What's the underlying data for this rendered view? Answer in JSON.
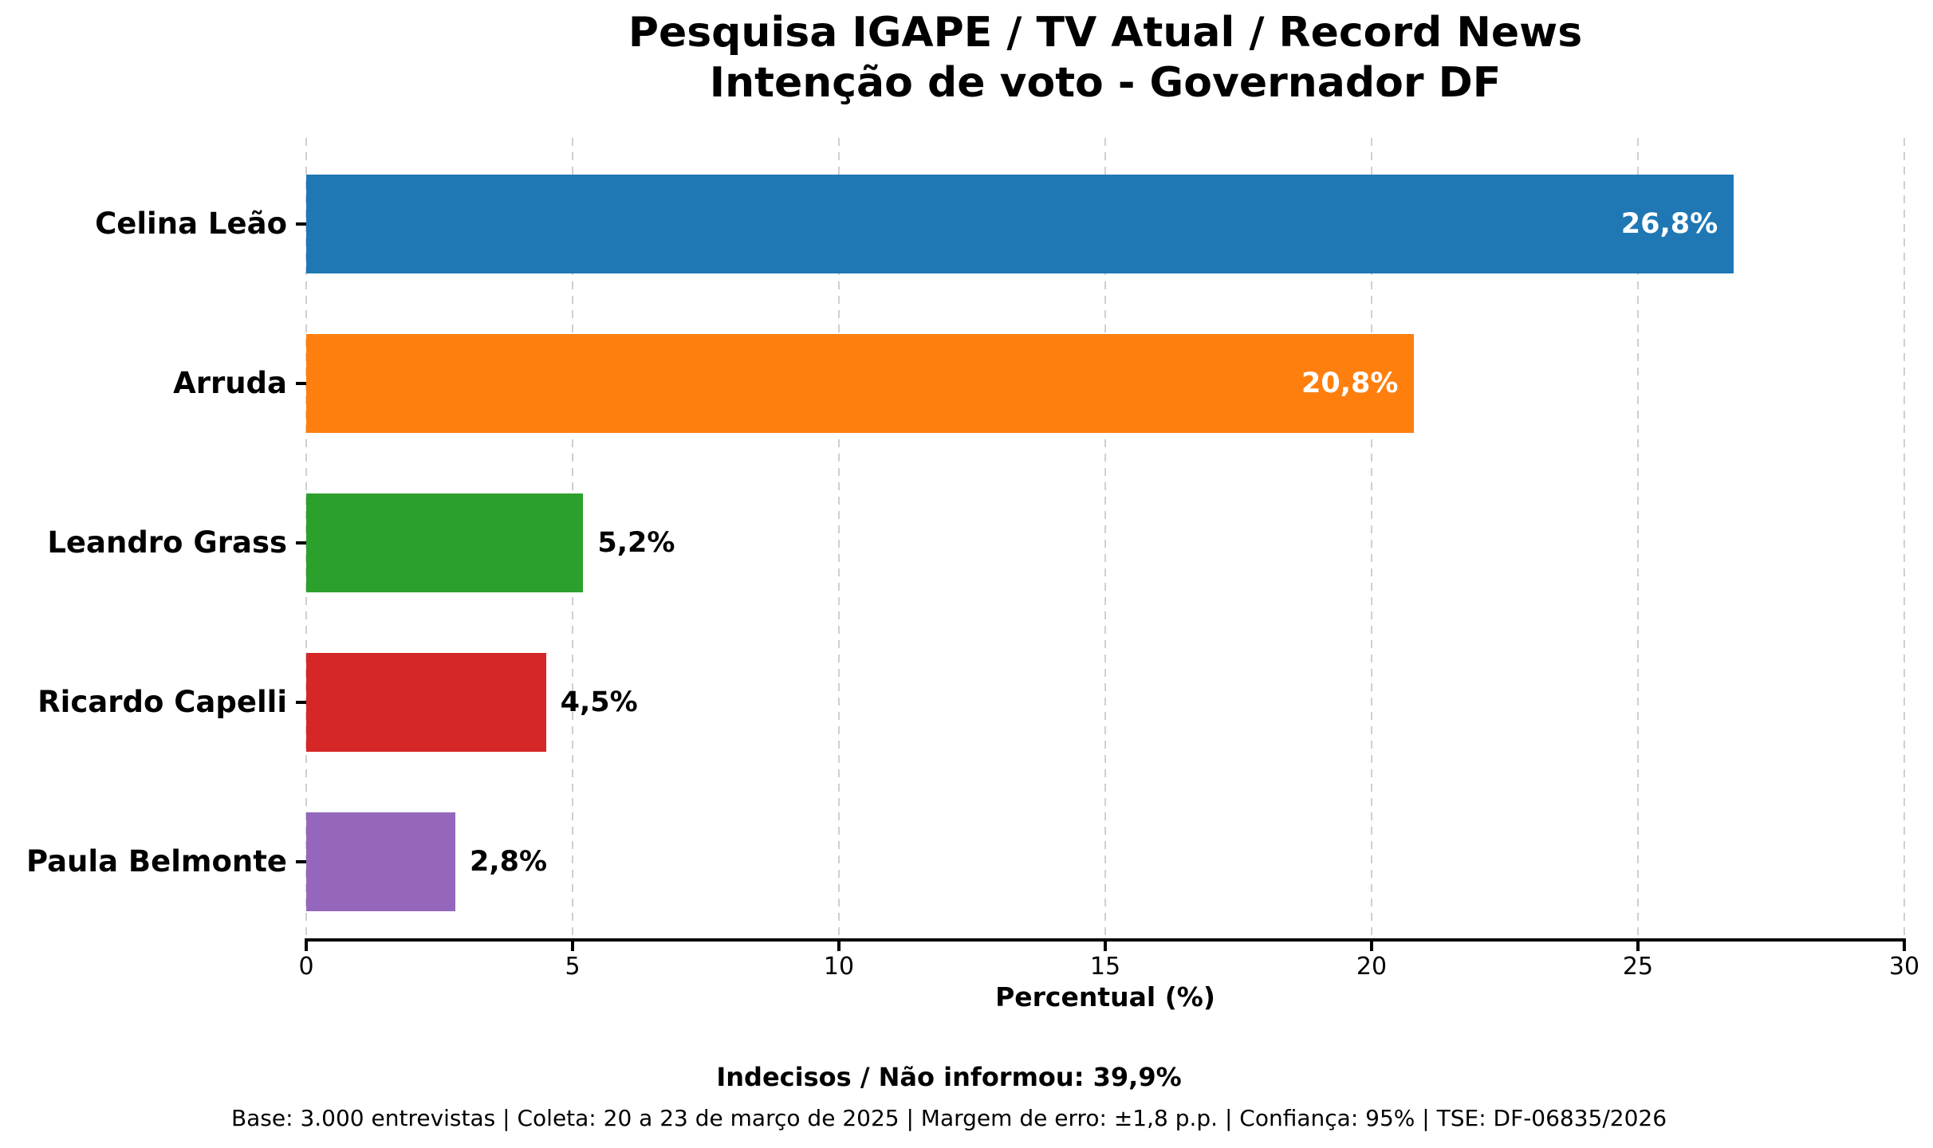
{
  "title": {
    "line1": "Pesquisa IGAPE / TV Atual / Record News",
    "line2": "Intenção de voto - Governador DF"
  },
  "chart_data": {
    "type": "bar",
    "orientation": "horizontal",
    "categories": [
      "Celina Leão",
      "Arruda",
      "Leandro Grass",
      "Ricardo Capelli",
      "Paula Belmonte"
    ],
    "values": [
      26.8,
      20.8,
      5.2,
      4.5,
      2.8
    ],
    "value_labels": [
      "26,8%",
      "20,8%",
      "5,2%",
      "4,5%",
      "2,8%"
    ],
    "bar_colors": [
      "#1f77b4",
      "#ff7f0e",
      "#2ca02c",
      "#d62728",
      "#9467bd"
    ],
    "xlabel": "Percentual (%)",
    "xlim": [
      0,
      30
    ],
    "xticks": [
      0,
      5,
      10,
      15,
      20,
      25,
      30
    ],
    "xtick_labels": [
      "0",
      "5",
      "10",
      "15",
      "20",
      "25",
      "30"
    ],
    "grid": "vertical-dashed",
    "grid_color": "#cfcfcf",
    "legend": "none",
    "value_label_inside_color": "#ffffff",
    "value_label_outside_color": "#000000"
  },
  "footer": {
    "undecided": "Indecisos / Não informou: 39,9%",
    "methodology": "Base: 3.000 entrevistas | Coleta: 20 a 23 de março de 2025 | Margem de erro: ±1,8 p.p. | Confiança: 95% | TSE: DF-06835/2026"
  }
}
